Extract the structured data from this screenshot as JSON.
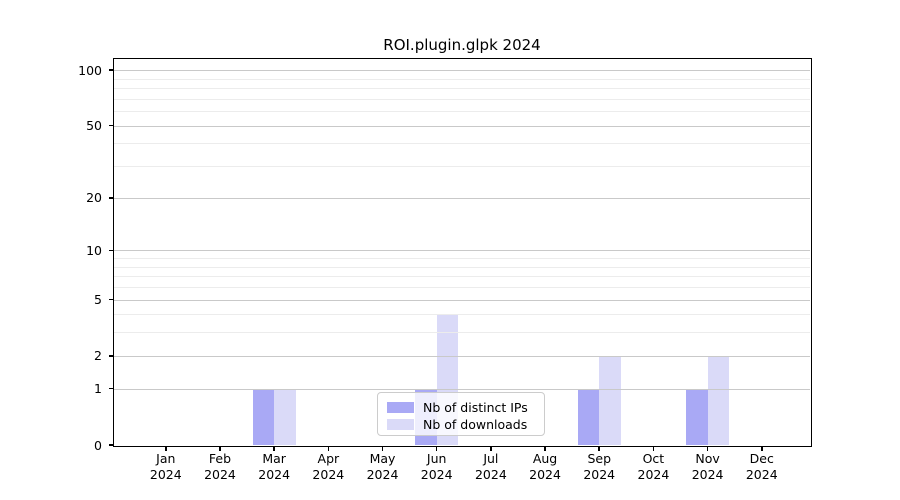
{
  "title": "ROI.plugin.glpk 2024",
  "chart_data": {
    "type": "bar",
    "title": "ROI.plugin.glpk 2024",
    "categories": [
      {
        "month": "Jan",
        "year": "2024"
      },
      {
        "month": "Feb",
        "year": "2024"
      },
      {
        "month": "Mar",
        "year": "2024"
      },
      {
        "month": "Apr",
        "year": "2024"
      },
      {
        "month": "May",
        "year": "2024"
      },
      {
        "month": "Jun",
        "year": "2024"
      },
      {
        "month": "Jul",
        "year": "2024"
      },
      {
        "month": "Aug",
        "year": "2024"
      },
      {
        "month": "Sep",
        "year": "2024"
      },
      {
        "month": "Oct",
        "year": "2024"
      },
      {
        "month": "Nov",
        "year": "2024"
      },
      {
        "month": "Dec",
        "year": "2024"
      }
    ],
    "series": [
      {
        "name": "Nb of distinct IPs",
        "color": "#a9a9f5",
        "values": [
          0,
          0,
          1,
          0,
          0,
          1,
          0,
          0,
          1,
          0,
          1,
          0
        ]
      },
      {
        "name": "Nb of downloads",
        "color": "#dadaf8",
        "values": [
          0,
          0,
          1,
          0,
          0,
          4,
          0,
          0,
          2,
          0,
          2,
          0
        ]
      }
    ],
    "xlabel": "",
    "ylabel": "",
    "y_scale": "log1p",
    "y_ticks": [
      0,
      1,
      2,
      5,
      10,
      20,
      50,
      100
    ],
    "y_minor_ticks": [
      3,
      4,
      6,
      7,
      8,
      9,
      30,
      40,
      60,
      70,
      80,
      90
    ],
    "ylim": [
      0,
      115
    ],
    "grid": "horizontal",
    "legend_position": "inside-bottom-center"
  },
  "colors": {
    "bar_distinct_ips": "#a9a9f5",
    "bar_downloads": "#dadaf8",
    "grid_major": "#c9c9c9",
    "grid_minor": "#ececec",
    "axis": "#000000",
    "legend_border": "#cccccc"
  }
}
